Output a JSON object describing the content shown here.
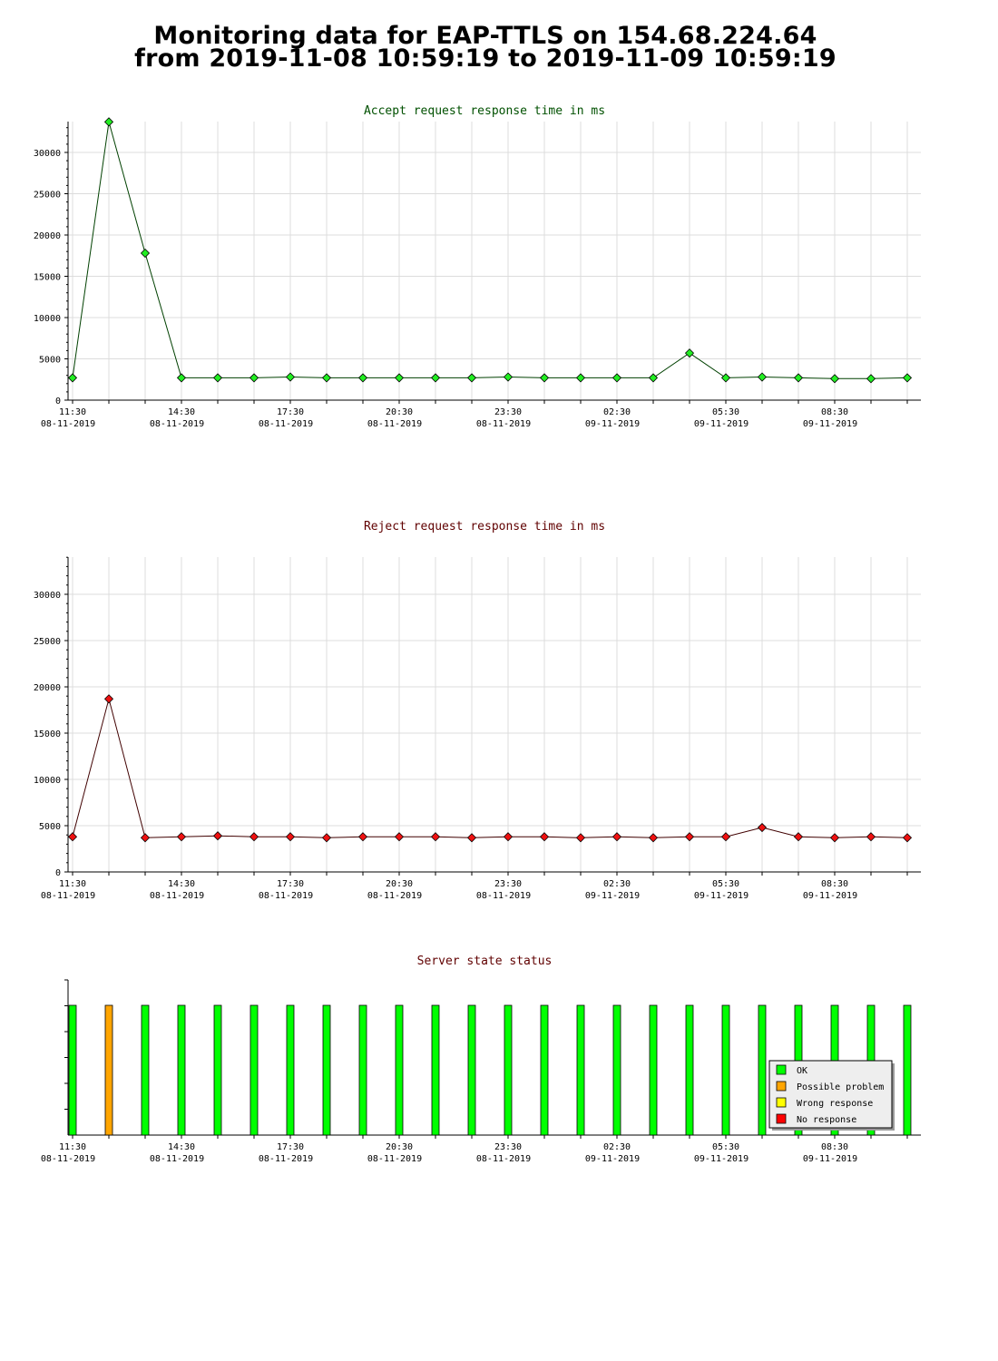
{
  "page": {
    "title_line1": "Monitoring data for EAP-TTLS on 154.68.224.64",
    "title_line2": "from 2019-11-08 10:59:19 to 2019-11-09 10:59:19"
  },
  "colors": {
    "grid": "#dcdcdc",
    "accept_line": "#004000",
    "accept_marker": "#22ee22",
    "accept_title": "#005000",
    "reject_line": "#400000",
    "reject_marker": "#ee1111",
    "reject_title": "#600000",
    "status_title": "#600000",
    "ok": "#00ff00",
    "possible_problem": "#ffa500",
    "wrong_response": "#ffff00",
    "no_response": "#ff0000"
  },
  "x_ticks": [
    {
      "time": "11:30",
      "date": "08-11-2019"
    },
    {
      "time": "14:30",
      "date": "08-11-2019"
    },
    {
      "time": "17:30",
      "date": "08-11-2019"
    },
    {
      "time": "20:30",
      "date": "08-11-2019"
    },
    {
      "time": "23:30",
      "date": "08-11-2019"
    },
    {
      "time": "02:30",
      "date": "09-11-2019"
    },
    {
      "time": "05:30",
      "date": "09-11-2019"
    },
    {
      "time": "08:30",
      "date": "09-11-2019"
    }
  ],
  "chart_data": [
    {
      "type": "line",
      "title": "Accept request response time in ms",
      "ylim": [
        0,
        33000
      ],
      "y_ticks": [
        0,
        5000,
        10000,
        15000,
        20000,
        25000,
        30000
      ],
      "grid": true,
      "x_unit": "hours since 11:30 08-11-2019 tick",
      "x": [
        -0.15,
        0.85,
        1.85,
        2.85,
        3.85,
        4.85,
        5.85,
        6.85,
        7.85,
        8.85,
        9.85,
        10.85,
        11.85,
        12.85,
        13.85,
        14.85,
        15.85,
        16.85,
        17.85,
        18.85,
        19.85,
        20.85,
        21.85,
        22.85
      ],
      "series": [
        {
          "values": [
            2700,
            33700,
            17800,
            2700,
            2700,
            2700,
            2800,
            2700,
            2700,
            2700,
            2700,
            2700,
            2800,
            2700,
            2700,
            2700,
            2700,
            5700,
            2700,
            2800,
            2700,
            2600,
            2600,
            2700
          ]
        }
      ]
    },
    {
      "type": "line",
      "title": "Reject request response time in ms",
      "ylim": [
        0,
        33000
      ],
      "y_ticks": [
        0,
        5000,
        10000,
        15000,
        20000,
        25000,
        30000
      ],
      "grid": true,
      "x": [
        -0.15,
        0.85,
        1.85,
        2.85,
        3.85,
        4.85,
        5.85,
        6.85,
        7.85,
        8.85,
        9.85,
        10.85,
        11.85,
        12.85,
        13.85,
        14.85,
        15.85,
        16.85,
        17.85,
        18.85,
        19.85,
        20.85,
        21.85,
        22.85
      ],
      "series": [
        {
          "values": [
            3800,
            18700,
            3700,
            3800,
            3900,
            3800,
            3800,
            3700,
            3800,
            3800,
            3800,
            3700,
            3800,
            3800,
            3700,
            3800,
            3700,
            3800,
            3800,
            4800,
            3800,
            3700,
            3800,
            3700
          ]
        }
      ]
    },
    {
      "type": "bar",
      "title": "Server state status",
      "grid": false,
      "legend_position": "bottom-right",
      "legend": [
        "OK",
        "Possible problem",
        "Wrong response",
        "No response"
      ],
      "x": [
        -0.15,
        0.85,
        1.85,
        2.85,
        3.85,
        4.85,
        5.85,
        6.85,
        7.85,
        8.85,
        9.85,
        10.85,
        11.85,
        12.85,
        13.85,
        14.85,
        15.85,
        16.85,
        17.85,
        18.85,
        19.85,
        20.85,
        21.85,
        22.85
      ],
      "states": [
        "OK",
        "Possible problem",
        "OK",
        "OK",
        "OK",
        "OK",
        "OK",
        "OK",
        "OK",
        "OK",
        "OK",
        "OK",
        "OK",
        "OK",
        "OK",
        "OK",
        "OK",
        "OK",
        "OK",
        "OK",
        "OK",
        "OK",
        "OK",
        "OK"
      ]
    }
  ]
}
